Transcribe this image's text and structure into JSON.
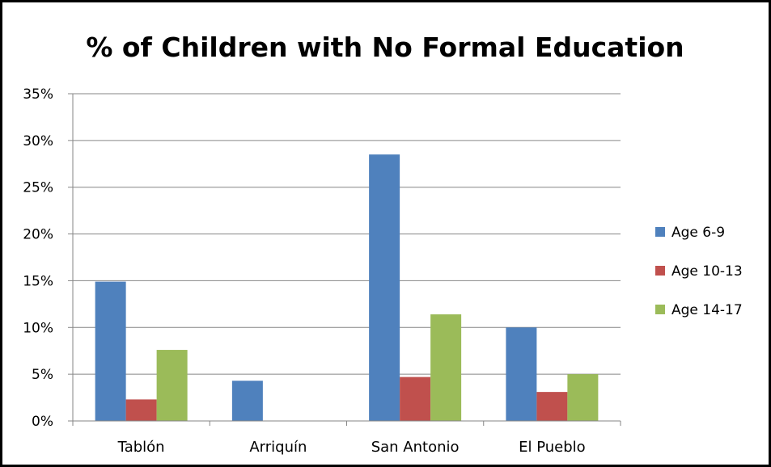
{
  "chart_data": {
    "type": "bar",
    "title": "% of Children with No Formal Education",
    "xlabel": "",
    "ylabel": "",
    "categories": [
      "Tablón",
      "Arriquín",
      "San Antonio",
      "El Pueblo"
    ],
    "series": [
      {
        "name": "Age 6-9",
        "color": "#4f81bd",
        "values": [
          14.9,
          4.3,
          28.5,
          10.0
        ]
      },
      {
        "name": "Age 10-13",
        "color": "#c0504d",
        "values": [
          2.3,
          0,
          4.7,
          3.1
        ]
      },
      {
        "name": "Age 14-17",
        "color": "#9bbb59",
        "values": [
          7.6,
          0,
          11.4,
          5.0
        ]
      }
    ],
    "ylim": [
      0,
      35
    ],
    "yticks": [
      0,
      5,
      10,
      15,
      20,
      25,
      30,
      35
    ],
    "ytick_labels": [
      "0%",
      "5%",
      "10%",
      "15%",
      "20%",
      "25%",
      "30%",
      "35%"
    ],
    "grid": true,
    "legend": "right",
    "gridline_color": "#868686",
    "axis_color": "#868686"
  }
}
